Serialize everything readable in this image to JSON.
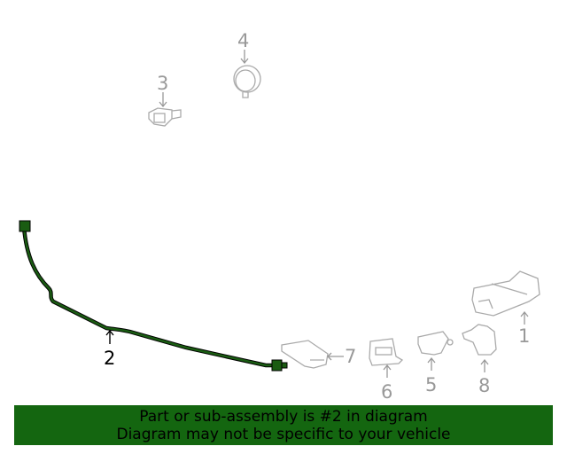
{
  "diagram": {
    "callouts": [
      {
        "number": "1",
        "highlighted": false
      },
      {
        "number": "2",
        "highlighted": true
      },
      {
        "number": "3",
        "highlighted": false
      },
      {
        "number": "4",
        "highlighted": false
      },
      {
        "number": "5",
        "highlighted": false
      },
      {
        "number": "6",
        "highlighted": false
      },
      {
        "number": "7",
        "highlighted": false
      },
      {
        "number": "8",
        "highlighted": false
      }
    ],
    "highlight_color": "#1a5c12"
  },
  "banner": {
    "line1": "Part or sub-assembly is #2 in diagram",
    "line2": "Diagram may not be specific to your vehicle",
    "color": "#146610"
  }
}
